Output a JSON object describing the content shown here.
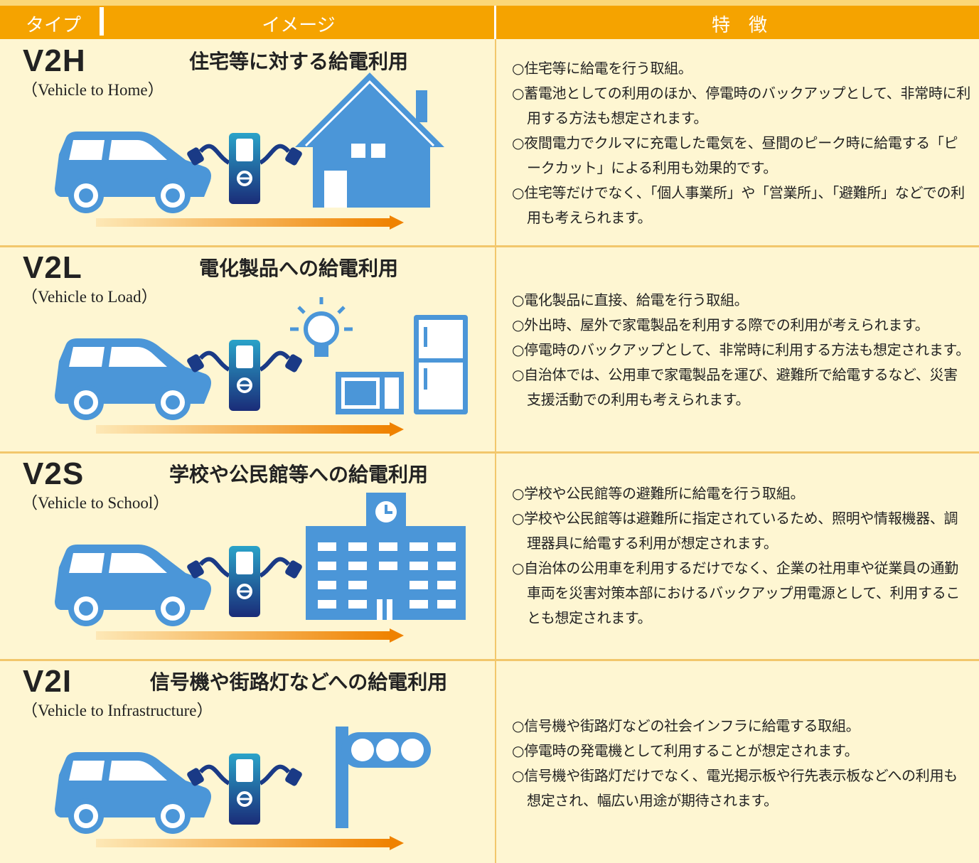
{
  "header": {
    "type": "タイプ",
    "image": "イメージ",
    "features": "特　徴"
  },
  "rows": [
    {
      "code": "V2H",
      "english": "（Vehicle to Home）",
      "title": "住宅等に対する給電利用",
      "features": [
        "○住宅等に給電を行う取組。",
        "○蓄電池としての利用のほか、停電時のバックアップとして、非常時に利用する方法も想定されます。",
        "○夜間電力でクルマに充電した電気を、昼間のピーク時に給電する「ピークカット」による利用も効果的です。",
        "○住宅等だけでなく、「個人事業所」や「営業所」、「避難所」などでの利用も考えられます。"
      ]
    },
    {
      "code": "V2L",
      "english": "（Vehicle to Load）",
      "title": "電化製品への給電利用",
      "features": [
        "○電化製品に直接、給電を行う取組。",
        "○外出時、屋外で家電製品を利用する際での利用が考えられます。",
        "○停電時のバックアップとして、非常時に利用する方法も想定されます。",
        "○自治体では、公用車で家電製品を運び、避難所で給電するなど、災害支援活動での利用も考えられます。"
      ]
    },
    {
      "code": "V2S",
      "english": "（Vehicle to School）",
      "title": "学校や公民館等への給電利用",
      "features": [
        "○学校や公民館等の避難所に給電を行う取組。",
        "○学校や公民館等は避難所に指定されているため、照明や情報機器、調理器具に給電する利用が想定されます。",
        "○自治体の公用車を利用するだけでなく、企業の社用車や従業員の通勤車両を災害対策本部におけるバックアップ用電源として、利用することも想定されます。"
      ]
    },
    {
      "code": "V2I",
      "english": "（Vehicle to Infrastructure）",
      "title": "信号機や街路灯などへの給電利用",
      "features": [
        "○信号機や街路灯などの社会インフラに給電する取組。",
        "○停電時の発電機として利用することが想定されます。",
        "○信号機や街路灯だけでなく、電光掲示板や行先表示板などへの利用も想定され、幅広い用途が期待されます。"
      ]
    }
  ]
}
